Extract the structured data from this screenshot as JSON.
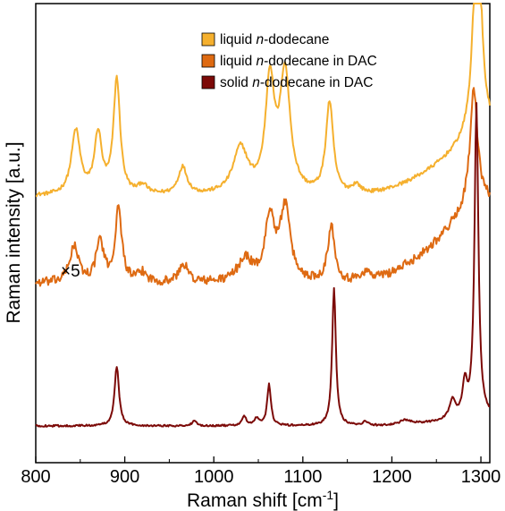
{
  "chart_data": {
    "type": "line",
    "xlabel": "Raman shift [cm",
    "xlabel_superscript": "-1",
    "xlabel_close": "]",
    "ylabel": "Raman intensity [a.u.]",
    "xlim": [
      800,
      1310
    ],
    "x_ticks": [
      800,
      900,
      1000,
      1100,
      1200,
      1300
    ],
    "y_ticks_shown": false,
    "grid": false,
    "legend_position": "top-right",
    "annotation": "×5",
    "series": [
      {
        "name_prefix": "liquid ",
        "name_italic": "n",
        "name_suffix": "-dodecane",
        "color": "#F5B02E",
        "baseline": 0.58,
        "noise": 0.004,
        "peaks": [
          {
            "x": 845,
            "h": 0.14,
            "w": 6
          },
          {
            "x": 870,
            "h": 0.13,
            "w": 5
          },
          {
            "x": 891,
            "h": 0.25,
            "w": 4.5
          },
          {
            "x": 920,
            "h": 0.02,
            "w": 6
          },
          {
            "x": 965,
            "h": 0.06,
            "w": 6
          },
          {
            "x": 1030,
            "h": 0.1,
            "w": 10
          },
          {
            "x": 1063,
            "h": 0.24,
            "w": 6
          },
          {
            "x": 1080,
            "h": 0.26,
            "w": 7
          },
          {
            "x": 1130,
            "h": 0.2,
            "w": 5
          },
          {
            "x": 1160,
            "h": 0.02,
            "w": 6
          },
          {
            "x": 1296,
            "h": 0.52,
            "w": 5
          }
        ],
        "rise": {
          "start": 1150,
          "end": 1296,
          "amp": 0.14
        }
      },
      {
        "name_prefix": "liquid ",
        "name_italic": "n",
        "name_suffix": "-dodecane in DAC",
        "color": "#DE6A12",
        "baseline": 0.39,
        "noise": 0.01,
        "peaks": [
          {
            "x": 843,
            "h": 0.08,
            "w": 6
          },
          {
            "x": 872,
            "h": 0.09,
            "w": 5
          },
          {
            "x": 893,
            "h": 0.16,
            "w": 4.5
          },
          {
            "x": 920,
            "h": 0.02,
            "w": 6
          },
          {
            "x": 966,
            "h": 0.04,
            "w": 6
          },
          {
            "x": 1035,
            "h": 0.05,
            "w": 10
          },
          {
            "x": 1063,
            "h": 0.14,
            "w": 6
          },
          {
            "x": 1080,
            "h": 0.16,
            "w": 7
          },
          {
            "x": 1132,
            "h": 0.12,
            "w": 5
          },
          {
            "x": 1170,
            "h": 0.02,
            "w": 8
          },
          {
            "x": 1292,
            "h": 0.24,
            "w": 5
          }
        ],
        "rise": {
          "start": 1150,
          "end": 1290,
          "amp": 0.18
        }
      },
      {
        "name_prefix": "solid ",
        "name_italic": "n",
        "name_suffix": "-dodecane in DAC",
        "color": "#7C0A08",
        "baseline": 0.08,
        "noise": 0.002,
        "peaks": [
          {
            "x": 891,
            "h": 0.13,
            "w": 3
          },
          {
            "x": 978,
            "h": 0.01,
            "w": 3
          },
          {
            "x": 1034,
            "h": 0.02,
            "w": 3
          },
          {
            "x": 1048,
            "h": 0.015,
            "w": 3
          },
          {
            "x": 1062,
            "h": 0.09,
            "w": 2.5
          },
          {
            "x": 1135,
            "h": 0.3,
            "w": 2.5
          },
          {
            "x": 1170,
            "h": 0.01,
            "w": 3
          },
          {
            "x": 1215,
            "h": 0.01,
            "w": 8
          },
          {
            "x": 1268,
            "h": 0.04,
            "w": 4
          },
          {
            "x": 1282,
            "h": 0.07,
            "w": 3
          },
          {
            "x": 1295,
            "h": 0.68,
            "w": 2.6
          }
        ],
        "rise": {
          "start": 1180,
          "end": 1290,
          "amp": 0.02
        }
      }
    ]
  }
}
